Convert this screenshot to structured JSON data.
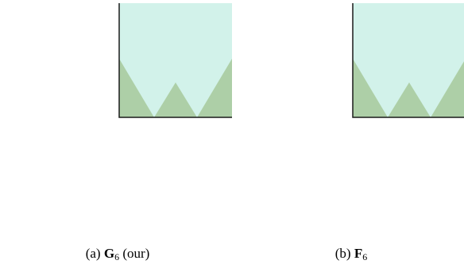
{
  "figure": {
    "panels": [
      {
        "id": "a",
        "prefix": "(a)",
        "symbol": "G",
        "subscript": "6",
        "suffix": "(our)"
      },
      {
        "id": "b",
        "prefix": "(b)",
        "symbol": "F",
        "subscript": "6",
        "suffix": ""
      }
    ],
    "colors": {
      "texture_base": "#8bbf3e",
      "texture_dark": "#2f4a12",
      "texture_light": "#e6f2c0",
      "inset_overlay": "#7fd9c4",
      "inset_border": "#1a1a1a"
    }
  }
}
